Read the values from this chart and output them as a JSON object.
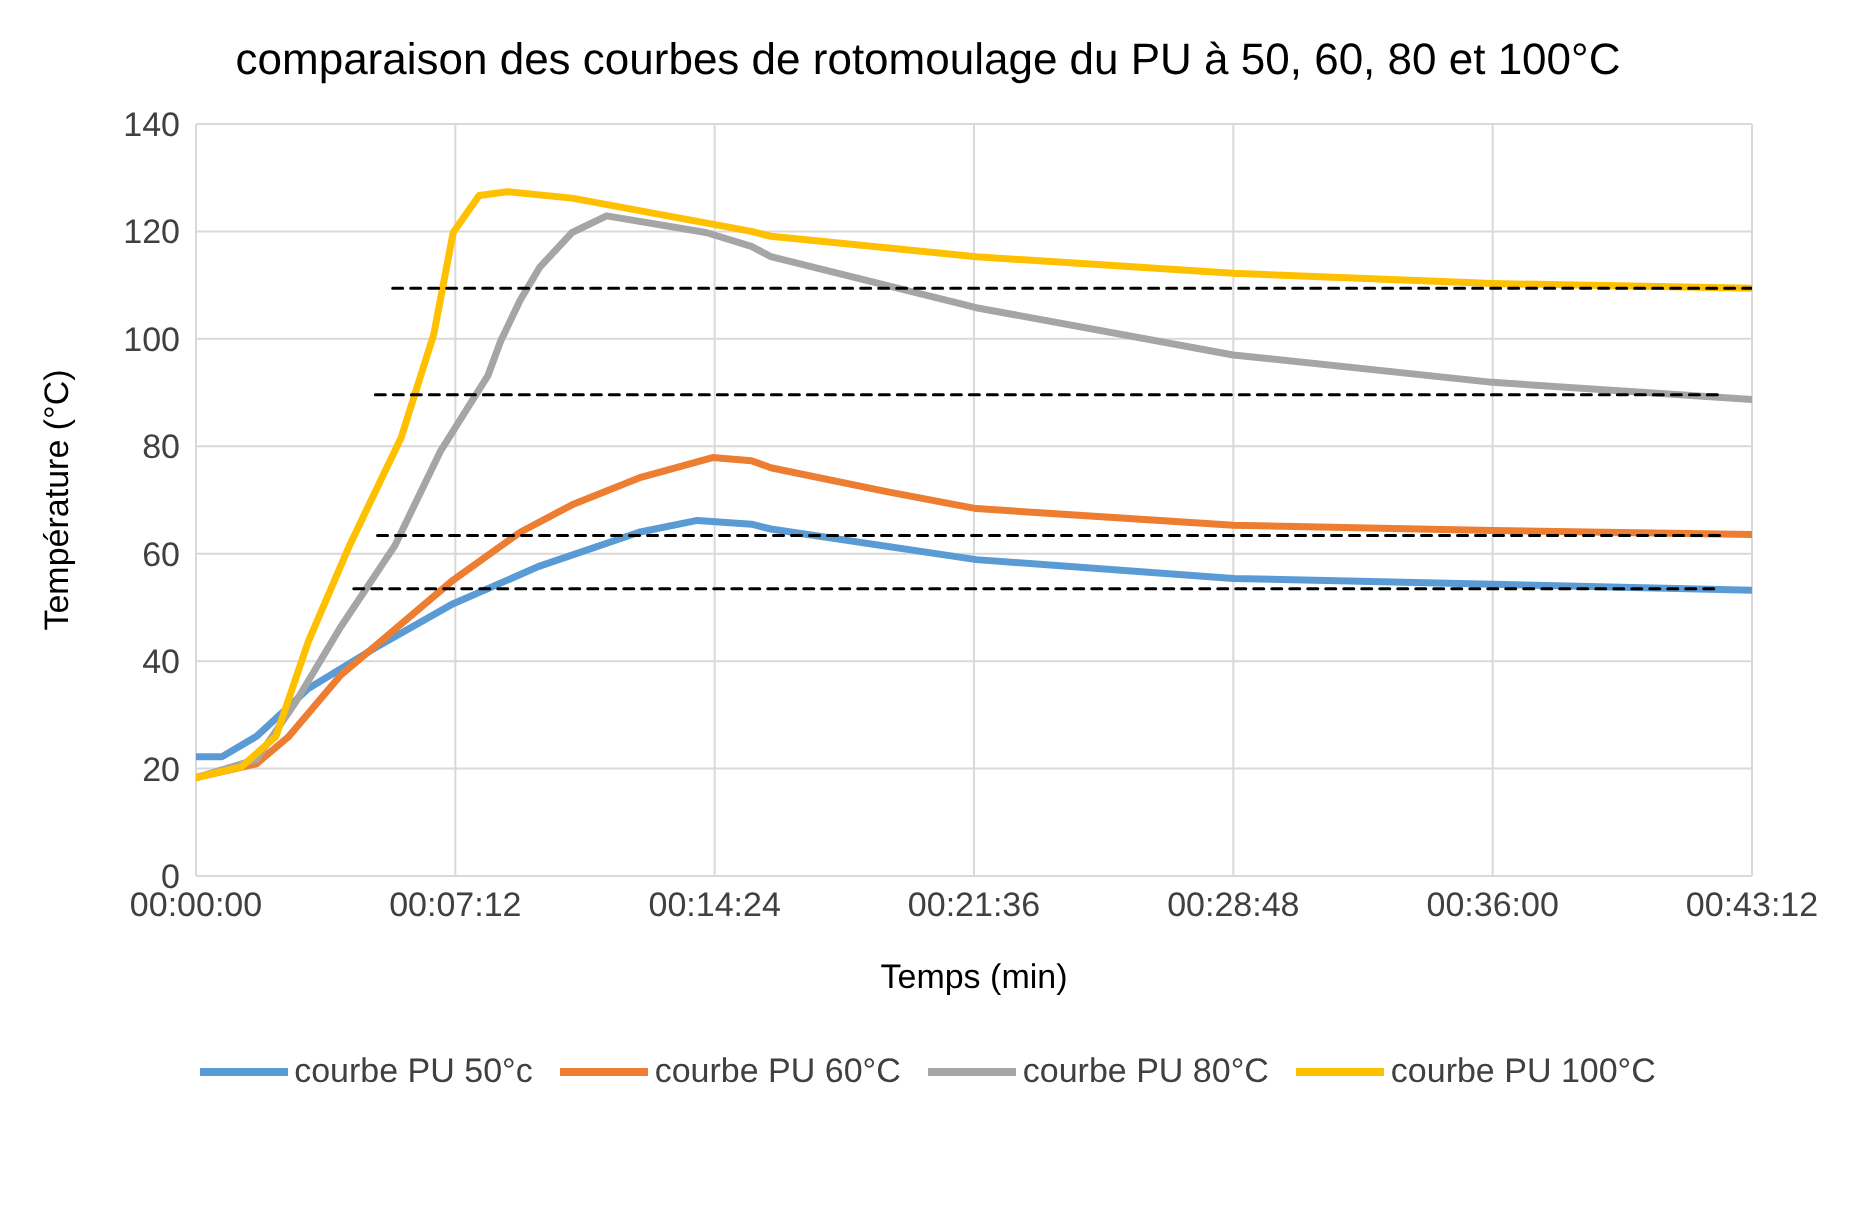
{
  "chart_data": {
    "type": "line",
    "title": "comparaison des courbes de rotomoulage du PU à 50, 60, 80 et 100°C",
    "xlabel": "Temps (min)",
    "ylabel": "Température (°C)",
    "xlim": [
      0,
      0.72
    ],
    "xticks": [
      {
        "value": 0,
        "label": "00:00:00"
      },
      {
        "value": 0.12,
        "label": "00:07:12"
      },
      {
        "value": 0.24,
        "label": "00:14:24"
      },
      {
        "value": 0.36,
        "label": "00:21:36"
      },
      {
        "value": 0.48,
        "label": "00:28:48"
      },
      {
        "value": 0.6,
        "label": "00:36:00"
      },
      {
        "value": 0.72,
        "label": "00:43:12"
      }
    ],
    "ylim": [
      0,
      140
    ],
    "yticks": [
      0,
      20,
      40,
      60,
      80,
      100,
      120,
      140
    ],
    "grid": true,
    "legend": "bottom",
    "marker": "none",
    "line_style": "solid",
    "series": [
      {
        "name": "courbe PU 50°c",
        "color": "#5b9bd5",
        "x": [
          0,
          0.012,
          0.028,
          0.052,
          0.083,
          0.119,
          0.159,
          0.205,
          0.232,
          0.257,
          0.266,
          0.361,
          0.48,
          0.6,
          0.72
        ],
        "values": [
          22.2,
          22.2,
          26,
          34.9,
          42.5,
          50.7,
          57.7,
          64,
          66.2,
          65.5,
          64.6,
          58.9,
          55.4,
          54.3,
          53.2
        ]
      },
      {
        "name": "courbe PU 60°C",
        "color": "#ed7d31",
        "x": [
          0,
          0.028,
          0.043,
          0.067,
          0.119,
          0.15,
          0.174,
          0.205,
          0.239,
          0.257,
          0.266,
          0.319,
          0.361,
          0.48,
          0.6,
          0.72
        ],
        "values": [
          18.3,
          20.9,
          26,
          37.4,
          55.1,
          64,
          69.1,
          74.1,
          77.9,
          77.3,
          76,
          71.6,
          68.4,
          65.3,
          64.3,
          63.6
        ]
      },
      {
        "name": "courbe PU 80°C",
        "color": "#a5a5a5",
        "x": [
          0,
          0.028,
          0.046,
          0.067,
          0.092,
          0.113,
          0.135,
          0.141,
          0.15,
          0.159,
          0.174,
          0.19,
          0.236,
          0.257,
          0.266,
          0.361,
          0.48,
          0.6,
          0.72
        ],
        "values": [
          18.3,
          21.7,
          32.3,
          46.4,
          61.5,
          79,
          93.1,
          99.6,
          107.2,
          113.3,
          119.8,
          122.9,
          119.8,
          117.2,
          115.3,
          105.8,
          97,
          91.9,
          88.7
        ]
      },
      {
        "name": "courbe PU 100°C",
        "color": "#ffc000",
        "x": [
          0,
          0.021,
          0.037,
          0.052,
          0.071,
          0.095,
          0.11,
          0.119,
          0.131,
          0.144,
          0.174,
          0.257,
          0.266,
          0.361,
          0.48,
          0.6,
          0.72
        ],
        "values": [
          18.3,
          20.3,
          26,
          43.7,
          61.5,
          81.7,
          100.8,
          119.8,
          126.7,
          127.4,
          126.2,
          120,
          119.1,
          115.3,
          112.2,
          110.3,
          109.4
        ]
      },
      {
        "color": "#000000",
        "line_style": "dashed",
        "x": [
          0.091,
          0.72
        ],
        "values": [
          109.4,
          109.4
        ]
      },
      {
        "color": "#000000",
        "line_style": "dashed",
        "x": [
          0.083,
          0.705
        ],
        "values": [
          89.6,
          89.6
        ]
      },
      {
        "color": "#000000",
        "line_style": "dashed",
        "x": [
          0.084,
          0.705
        ],
        "values": [
          63.4,
          63.4
        ]
      },
      {
        "color": "#000000",
        "line_style": "dashed",
        "x": [
          0.073,
          0.705
        ],
        "values": [
          53.5,
          53.5
        ]
      }
    ]
  }
}
